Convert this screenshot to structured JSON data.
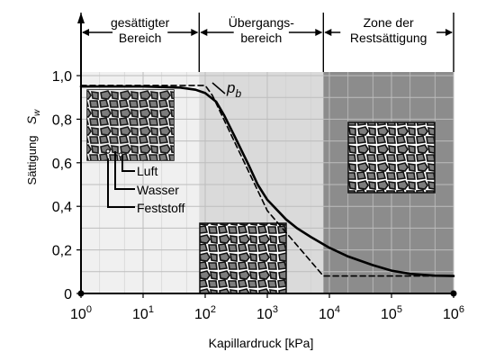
{
  "chart_data": {
    "type": "line",
    "xscale": "log",
    "xlim": [
      1,
      1000000
    ],
    "ylim": [
      0,
      1.0
    ],
    "xlabel": "Kapillardruck [kPa]",
    "ylabel": "Sättigung",
    "ylabel_symbol": "S",
    "ylabel_symbol_sub": "w",
    "x_ticks": [
      {
        "base": "10",
        "exp": "0",
        "value": 1
      },
      {
        "base": "10",
        "exp": "1",
        "value": 10
      },
      {
        "base": "10",
        "exp": "2",
        "value": 100
      },
      {
        "base": "10",
        "exp": "3",
        "value": 1000
      },
      {
        "base": "10",
        "exp": "4",
        "value": 10000
      },
      {
        "base": "10",
        "exp": "5",
        "value": 100000
      },
      {
        "base": "10",
        "exp": "6",
        "value": 1000000
      }
    ],
    "y_ticks": [
      {
        "label": "0",
        "value": 0
      },
      {
        "label": "0,2",
        "value": 0.2
      },
      {
        "label": "0,4",
        "value": 0.4
      },
      {
        "label": "0,6",
        "value": 0.6
      },
      {
        "label": "0,8",
        "value": 0.8
      },
      {
        "label": "1,0",
        "value": 1.0
      }
    ],
    "series": [
      {
        "style": "solid",
        "x": [
          1,
          10,
          40,
          70,
          100,
          150,
          200,
          300,
          500,
          700,
          1000,
          2000,
          3000,
          5000,
          10000,
          20000,
          50000,
          100000,
          200000,
          500000,
          1000000
        ],
        "y": [
          0.95,
          0.95,
          0.945,
          0.935,
          0.92,
          0.88,
          0.82,
          0.72,
          0.59,
          0.5,
          0.43,
          0.34,
          0.3,
          0.26,
          0.21,
          0.17,
          0.13,
          0.105,
          0.09,
          0.082,
          0.08
        ]
      },
      {
        "style": "dashed",
        "x": [
          1,
          100,
          130,
          1000,
          8000,
          1000000
        ],
        "y": [
          0.955,
          0.955,
          0.91,
          0.38,
          0.08,
          0.08
        ]
      }
    ],
    "zones": [
      {
        "label_lines": [
          "gesättigter",
          "Bereich"
        ],
        "x_start": 1,
        "x_end": 80,
        "shade": "#f0f0f0"
      },
      {
        "label_lines": [
          "Übergangs-",
          "bereich"
        ],
        "x_start": 80,
        "x_end": 8000,
        "shade": "#dadada"
      },
      {
        "label_lines": [
          "Zone der",
          "Restsättigung"
        ],
        "x_start": 8000,
        "x_end": 1000000,
        "shade": "#8c8c8c"
      }
    ],
    "annotations": {
      "point_label": "p",
      "point_label_sub": "b",
      "point": {
        "x": 150,
        "y": 0.88
      },
      "legend_items": [
        "Luft",
        "Wasser",
        "Feststoff"
      ]
    },
    "grid": true
  }
}
